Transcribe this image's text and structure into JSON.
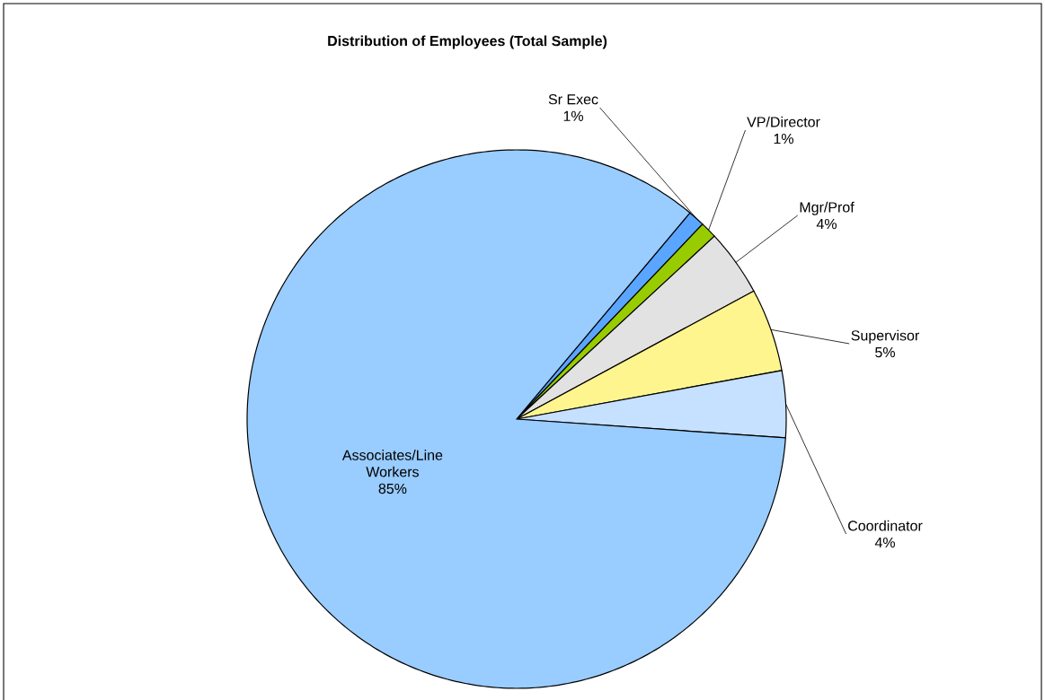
{
  "chart_data": {
    "type": "pie",
    "title": "Distribution of Employees (Total Sample)",
    "categories": [
      "Sr Exec",
      "VP/Director",
      "Mgr/Prof",
      "Supervisor",
      "Coordinator",
      "Associates/Line Workers"
    ],
    "values": [
      1,
      1,
      4,
      5,
      4,
      85
    ],
    "value_labels": [
      "1%",
      "1%",
      "4%",
      "5%",
      "4%",
      "85%"
    ],
    "colors": [
      "#5aa5ff",
      "#99cc00",
      "#e2e2e2",
      "#fff58f",
      "#c6e0ff",
      "#99ccff"
    ]
  }
}
